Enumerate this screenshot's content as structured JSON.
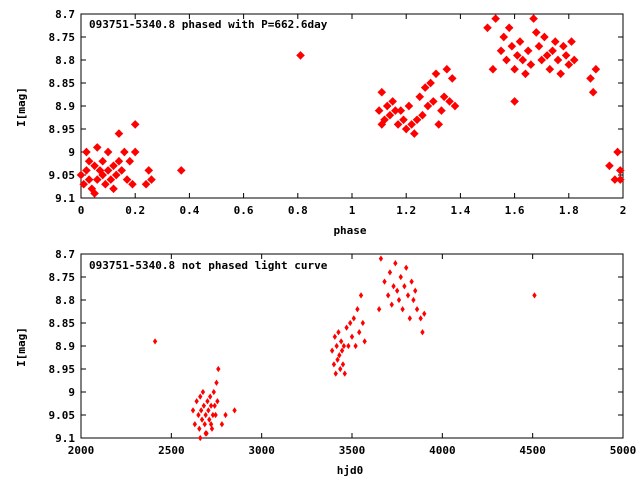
{
  "chart_data": [
    {
      "type": "scatter",
      "title": "093751-5340.8 phased with P=662.6day",
      "xlabel": "phase",
      "ylabel": "I[mag]",
      "xlim": [
        0,
        2
      ],
      "ylim": [
        9.1,
        8.7
      ],
      "y_inverted": true,
      "xticks": [
        "0",
        "0.2",
        "0.4",
        "0.6",
        "0.8",
        "1",
        "1.2",
        "1.4",
        "1.6",
        "1.8",
        "2"
      ],
      "xtick_values": [
        0,
        0.2,
        0.4,
        0.6,
        0.8,
        1.0,
        1.2,
        1.4,
        1.6,
        1.8,
        2.0
      ],
      "yticks": [
        "8.7",
        "8.75",
        "8.8",
        "8.85",
        "8.9",
        "8.95",
        "9",
        "9.05",
        "9.1"
      ],
      "ytick_values": [
        8.7,
        8.75,
        8.8,
        8.85,
        8.9,
        8.95,
        9.0,
        9.05,
        9.1
      ],
      "marker_color": "#ff0000",
      "marker": "filled-star",
      "series": [
        {
          "points": [
            [
              0.0,
              9.05
            ],
            [
              0.01,
              9.07
            ],
            [
              0.02,
              9.0
            ],
            [
              0.02,
              9.04
            ],
            [
              0.03,
              9.02
            ],
            [
              0.03,
              9.06
            ],
            [
              0.04,
              9.08
            ],
            [
              0.05,
              9.03
            ],
            [
              0.05,
              9.09
            ],
            [
              0.06,
              8.99
            ],
            [
              0.06,
              9.06
            ],
            [
              0.07,
              9.04
            ],
            [
              0.08,
              9.02
            ],
            [
              0.08,
              9.05
            ],
            [
              0.09,
              9.07
            ],
            [
              0.1,
              9.0
            ],
            [
              0.1,
              9.04
            ],
            [
              0.11,
              9.06
            ],
            [
              0.12,
              9.03
            ],
            [
              0.12,
              9.08
            ],
            [
              0.13,
              9.05
            ],
            [
              0.14,
              8.96
            ],
            [
              0.14,
              9.02
            ],
            [
              0.15,
              9.04
            ],
            [
              0.16,
              9.0
            ],
            [
              0.17,
              9.06
            ],
            [
              0.18,
              9.02
            ],
            [
              0.19,
              9.07
            ],
            [
              0.2,
              9.0
            ],
            [
              0.2,
              8.94
            ],
            [
              0.24,
              9.07
            ],
            [
              0.25,
              9.04
            ],
            [
              0.26,
              9.06
            ],
            [
              0.37,
              9.04
            ],
            [
              0.81,
              8.79
            ],
            [
              1.1,
              8.91
            ],
            [
              1.11,
              8.94
            ],
            [
              1.11,
              8.87
            ],
            [
              1.12,
              8.93
            ],
            [
              1.13,
              8.9
            ],
            [
              1.14,
              8.92
            ],
            [
              1.15,
              8.89
            ],
            [
              1.16,
              8.91
            ],
            [
              1.17,
              8.94
            ],
            [
              1.18,
              8.91
            ],
            [
              1.19,
              8.93
            ],
            [
              1.2,
              8.95
            ],
            [
              1.21,
              8.9
            ],
            [
              1.22,
              8.94
            ],
            [
              1.23,
              8.96
            ],
            [
              1.24,
              8.93
            ],
            [
              1.25,
              8.88
            ],
            [
              1.26,
              8.92
            ],
            [
              1.27,
              8.86
            ],
            [
              1.28,
              8.9
            ],
            [
              1.29,
              8.85
            ],
            [
              1.3,
              8.89
            ],
            [
              1.31,
              8.83
            ],
            [
              1.32,
              8.94
            ],
            [
              1.33,
              8.91
            ],
            [
              1.34,
              8.88
            ],
            [
              1.35,
              8.82
            ],
            [
              1.36,
              8.89
            ],
            [
              1.37,
              8.84
            ],
            [
              1.38,
              8.9
            ],
            [
              1.52,
              8.82
            ],
            [
              1.53,
              8.71
            ],
            [
              1.55,
              8.78
            ],
            [
              1.56,
              8.75
            ],
            [
              1.57,
              8.8
            ],
            [
              1.58,
              8.73
            ],
            [
              1.59,
              8.77
            ],
            [
              1.6,
              8.82
            ],
            [
              1.61,
              8.79
            ],
            [
              1.62,
              8.76
            ],
            [
              1.63,
              8.8
            ],
            [
              1.64,
              8.83
            ],
            [
              1.65,
              8.78
            ],
            [
              1.66,
              8.81
            ],
            [
              1.67,
              8.71
            ],
            [
              1.68,
              8.74
            ],
            [
              1.69,
              8.77
            ],
            [
              1.7,
              8.8
            ],
            [
              1.71,
              8.75
            ],
            [
              1.72,
              8.79
            ],
            [
              1.73,
              8.82
            ],
            [
              1.74,
              8.78
            ],
            [
              1.75,
              8.76
            ],
            [
              1.76,
              8.8
            ],
            [
              1.77,
              8.83
            ],
            [
              1.78,
              8.77
            ],
            [
              1.79,
              8.79
            ],
            [
              1.8,
              8.81
            ],
            [
              1.81,
              8.76
            ],
            [
              1.82,
              8.8
            ],
            [
              1.88,
              8.84
            ],
            [
              1.89,
              8.87
            ],
            [
              1.9,
              8.82
            ],
            [
              1.95,
              9.03
            ],
            [
              1.97,
              9.06
            ],
            [
              1.98,
              9.0
            ],
            [
              1.99,
              9.04
            ],
            [
              1.99,
              9.06
            ],
            [
              1.6,
              8.89
            ],
            [
              1.5,
              8.73
            ]
          ]
        }
      ]
    },
    {
      "type": "scatter",
      "title": "093751-5340.8 not phased light curve",
      "xlabel": "hjd0",
      "ylabel": "I[mag]",
      "xlim": [
        2000,
        5000
      ],
      "ylim": [
        9.1,
        8.7
      ],
      "y_inverted": true,
      "xticks": [
        "2000",
        "2500",
        "3000",
        "3500",
        "4000",
        "4500",
        "5000"
      ],
      "xtick_values": [
        2000,
        2500,
        3000,
        3500,
        4000,
        4500,
        5000
      ],
      "yticks": [
        "8.7",
        "8.75",
        "8.8",
        "8.85",
        "8.9",
        "8.95",
        "9",
        "9.05",
        "9.1"
      ],
      "ytick_values": [
        8.7,
        8.75,
        8.8,
        8.85,
        8.9,
        8.95,
        9.0,
        9.05,
        9.1
      ],
      "marker_color": "#ff0000",
      "marker": "filled-diamond",
      "series": [
        {
          "points": [
            [
              2410,
              8.89
            ],
            [
              2620,
              9.04
            ],
            [
              2630,
              9.07
            ],
            [
              2640,
              9.02
            ],
            [
              2650,
              9.05
            ],
            [
              2655,
              9.08
            ],
            [
              2660,
              9.01
            ],
            [
              2665,
              9.04
            ],
            [
              2670,
              9.06
            ],
            [
              2675,
              9.0
            ],
            [
              2680,
              9.03
            ],
            [
              2685,
              9.07
            ],
            [
              2690,
              9.05
            ],
            [
              2695,
              9.09
            ],
            [
              2700,
              9.02
            ],
            [
              2705,
              9.04
            ],
            [
              2710,
              9.06
            ],
            [
              2715,
              9.01
            ],
            [
              2720,
              9.03
            ],
            [
              2725,
              9.08
            ],
            [
              2730,
              9.05
            ],
            [
              2735,
              9.0
            ],
            [
              2740,
              9.03
            ],
            [
              2745,
              9.05
            ],
            [
              2750,
              8.98
            ],
            [
              2755,
              9.02
            ],
            [
              2760,
              8.95
            ],
            [
              2780,
              9.07
            ],
            [
              2800,
              9.05
            ],
            [
              2850,
              9.04
            ],
            [
              2660,
              9.1
            ],
            [
              2690,
              9.09
            ],
            [
              2720,
              9.07
            ],
            [
              3390,
              8.91
            ],
            [
              3400,
              8.94
            ],
            [
              3405,
              8.88
            ],
            [
              3410,
              8.96
            ],
            [
              3415,
              8.9
            ],
            [
              3420,
              8.93
            ],
            [
              3425,
              8.87
            ],
            [
              3430,
              8.92
            ],
            [
              3435,
              8.95
            ],
            [
              3440,
              8.89
            ],
            [
              3445,
              8.91
            ],
            [
              3450,
              8.94
            ],
            [
              3455,
              8.9
            ],
            [
              3460,
              8.96
            ],
            [
              3470,
              8.86
            ],
            [
              3480,
              8.9
            ],
            [
              3490,
              8.85
            ],
            [
              3500,
              8.88
            ],
            [
              3510,
              8.84
            ],
            [
              3520,
              8.9
            ],
            [
              3530,
              8.82
            ],
            [
              3540,
              8.87
            ],
            [
              3550,
              8.79
            ],
            [
              3560,
              8.85
            ],
            [
              3570,
              8.89
            ],
            [
              3650,
              8.82
            ],
            [
              3660,
              8.71
            ],
            [
              3680,
              8.76
            ],
            [
              3700,
              8.79
            ],
            [
              3710,
              8.74
            ],
            [
              3720,
              8.81
            ],
            [
              3730,
              8.77
            ],
            [
              3740,
              8.72
            ],
            [
              3750,
              8.78
            ],
            [
              3760,
              8.8
            ],
            [
              3770,
              8.75
            ],
            [
              3780,
              8.82
            ],
            [
              3790,
              8.77
            ],
            [
              3800,
              8.73
            ],
            [
              3810,
              8.79
            ],
            [
              3820,
              8.84
            ],
            [
              3830,
              8.76
            ],
            [
              3840,
              8.8
            ],
            [
              3850,
              8.78
            ],
            [
              3860,
              8.82
            ],
            [
              3880,
              8.84
            ],
            [
              3890,
              8.87
            ],
            [
              3900,
              8.83
            ],
            [
              4510,
              8.79
            ]
          ]
        }
      ]
    }
  ]
}
